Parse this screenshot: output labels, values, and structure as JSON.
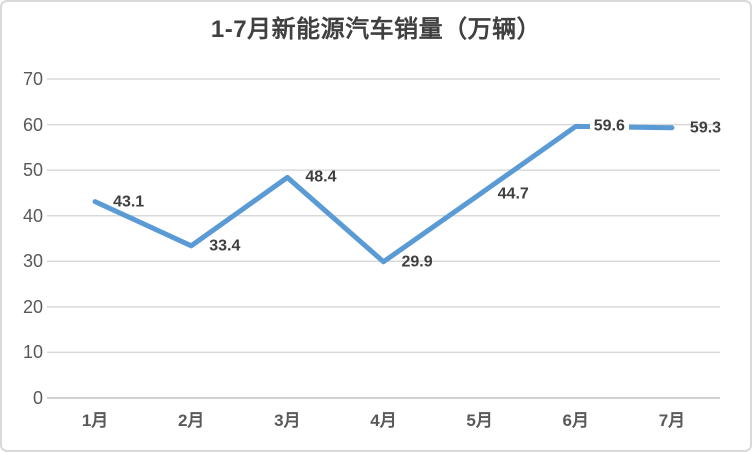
{
  "chart": {
    "title": "1-7月新能源汽车销量（万辆）"
  },
  "chart_data": {
    "type": "line",
    "title": "1-7月新能源汽车销量（万辆）",
    "categories": [
      "1月",
      "2月",
      "3月",
      "4月",
      "5月",
      "6月",
      "7月"
    ],
    "values": [
      43.1,
      33.4,
      48.4,
      29.9,
      44.7,
      59.6,
      59.3
    ],
    "xlabel": "",
    "ylabel": "",
    "ylim": [
      0,
      70
    ],
    "yticks": [
      0,
      10,
      20,
      30,
      40,
      50,
      60,
      70
    ],
    "grid": "horizontal",
    "legend": "none",
    "data_labels_shown": true,
    "colors": {
      "line": "#5B9BD5",
      "gridline": "#D9D9D9",
      "axis_line": "#C0C0C0",
      "tick_label": "#595959",
      "category_label": "#595959",
      "data_label": "#3F3F3F",
      "title": "#404040",
      "background": "#FFFFFF",
      "border": "#D9D9D9"
    }
  }
}
